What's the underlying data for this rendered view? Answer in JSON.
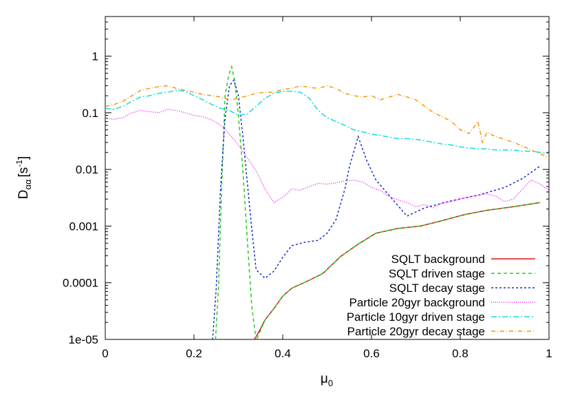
{
  "chart_data": {
    "type": "line",
    "xlabel": "μ",
    "xlabel_sub": "0",
    "ylabel": "D",
    "ylabel_sub": "αα",
    "ylabel_unit": "[s",
    "ylabel_unit_sup": "-1",
    "ylabel_unit_close": "]",
    "xlim": [
      0,
      1
    ],
    "ylim": [
      1e-05,
      5
    ],
    "yscale": "log",
    "x_ticks": [
      {
        "v": 0,
        "label": "0"
      },
      {
        "v": 0.2,
        "label": "0.2"
      },
      {
        "v": 0.4,
        "label": "0.4"
      },
      {
        "v": 0.6,
        "label": "0.6"
      },
      {
        "v": 0.8,
        "label": "0.8"
      },
      {
        "v": 1,
        "label": "1"
      }
    ],
    "y_ticks": [
      {
        "v": 1e-05,
        "label": "1e-05"
      },
      {
        "v": 0.0001,
        "label": "0.0001"
      },
      {
        "v": 0.001,
        "label": "0.001"
      },
      {
        "v": 0.01,
        "label": "0.01"
      },
      {
        "v": 0.1,
        "label": "0.1"
      },
      {
        "v": 1,
        "label": "1"
      }
    ],
    "legend_position": "bottom-right",
    "series": [
      {
        "name": "SQLT background",
        "color": "#dd1111",
        "dash": "",
        "points": [
          [
            0.33,
            8.5e-06
          ],
          [
            0.345,
            1.3e-05
          ],
          [
            0.36,
            2.2e-05
          ],
          [
            0.38,
            3.5e-05
          ],
          [
            0.4,
            5.8e-05
          ],
          [
            0.42,
            8e-05
          ],
          [
            0.45,
            0.000102
          ],
          [
            0.49,
            0.000145
          ],
          [
            0.53,
            0.00029
          ],
          [
            0.57,
            0.00048
          ],
          [
            0.61,
            0.00075
          ],
          [
            0.66,
            0.00091
          ],
          [
            0.71,
            0.001
          ],
          [
            0.76,
            0.00125
          ],
          [
            0.81,
            0.0016
          ],
          [
            0.86,
            0.0019
          ],
          [
            0.92,
            0.0022
          ],
          [
            0.98,
            0.0026
          ]
        ]
      },
      {
        "name": "SQLT driven stage",
        "color": "#22cc22",
        "dash": "5,4",
        "points": [
          [
            0.247,
            6e-06
          ],
          [
            0.255,
            8e-05
          ],
          [
            0.262,
            0.004
          ],
          [
            0.27,
            0.2
          ],
          [
            0.278,
            0.45
          ],
          [
            0.285,
            0.65
          ],
          [
            0.292,
            0.35
          ],
          [
            0.3,
            0.09
          ],
          [
            0.31,
            0.01
          ],
          [
            0.32,
            0.0006
          ],
          [
            0.33,
            4e-05
          ],
          [
            0.34,
            9.5e-06
          ],
          [
            0.36,
            2.2e-05
          ],
          [
            0.38,
            3.5e-05
          ],
          [
            0.4,
            5.8e-05
          ],
          [
            0.42,
            8e-05
          ],
          [
            0.45,
            0.000102
          ],
          [
            0.49,
            0.000145
          ],
          [
            0.53,
            0.00029
          ],
          [
            0.57,
            0.00048
          ],
          [
            0.61,
            0.00075
          ],
          [
            0.66,
            0.00091
          ],
          [
            0.71,
            0.001
          ],
          [
            0.76,
            0.00125
          ],
          [
            0.81,
            0.0016
          ],
          [
            0.86,
            0.0019
          ],
          [
            0.92,
            0.0022
          ],
          [
            0.98,
            0.0026
          ]
        ]
      },
      {
        "name": "SQLT decay stage",
        "color": "#1a2acc",
        "dash": "3,3",
        "points": [
          [
            0.24,
            6e-06
          ],
          [
            0.25,
            8e-05
          ],
          [
            0.26,
            0.005
          ],
          [
            0.27,
            0.08
          ],
          [
            0.28,
            0.3
          ],
          [
            0.29,
            0.38
          ],
          [
            0.3,
            0.2
          ],
          [
            0.31,
            0.04
          ],
          [
            0.32,
            0.006
          ],
          [
            0.33,
            0.0009
          ],
          [
            0.34,
            0.00017
          ],
          [
            0.36,
            0.00012
          ],
          [
            0.38,
            0.00016
          ],
          [
            0.4,
            0.00028
          ],
          [
            0.42,
            0.00045
          ],
          [
            0.45,
            0.00052
          ],
          [
            0.48,
            0.00056
          ],
          [
            0.5,
            0.00075
          ],
          [
            0.52,
            0.0013
          ],
          [
            0.54,
            0.0045
          ],
          [
            0.55,
            0.011
          ],
          [
            0.57,
            0.038
          ],
          [
            0.59,
            0.014
          ],
          [
            0.61,
            0.0065
          ],
          [
            0.65,
            0.0028
          ],
          [
            0.68,
            0.0015
          ],
          [
            0.72,
            0.0021
          ],
          [
            0.78,
            0.0028
          ],
          [
            0.84,
            0.0035
          ],
          [
            0.9,
            0.0048
          ],
          [
            0.94,
            0.0069
          ],
          [
            0.98,
            0.0115
          ]
        ]
      },
      {
        "name": "Particle 20gyr background",
        "color": "#ee22ee",
        "dash": "1,2",
        "points": [
          [
            0.0,
            0.08
          ],
          [
            0.02,
            0.077
          ],
          [
            0.04,
            0.082
          ],
          [
            0.06,
            0.1
          ],
          [
            0.08,
            0.11
          ],
          [
            0.1,
            0.105
          ],
          [
            0.12,
            0.1
          ],
          [
            0.14,
            0.115
          ],
          [
            0.16,
            0.11
          ],
          [
            0.18,
            0.1
          ],
          [
            0.2,
            0.09
          ],
          [
            0.22,
            0.085
          ],
          [
            0.24,
            0.075
          ],
          [
            0.26,
            0.06
          ],
          [
            0.28,
            0.042
          ],
          [
            0.3,
            0.027
          ],
          [
            0.32,
            0.016
          ],
          [
            0.34,
            0.0095
          ],
          [
            0.36,
            0.0045
          ],
          [
            0.38,
            0.0026
          ],
          [
            0.4,
            0.0032
          ],
          [
            0.42,
            0.0045
          ],
          [
            0.44,
            0.0043
          ],
          [
            0.46,
            0.005
          ],
          [
            0.48,
            0.0057
          ],
          [
            0.5,
            0.0055
          ],
          [
            0.52,
            0.0058
          ],
          [
            0.54,
            0.0063
          ],
          [
            0.56,
            0.0065
          ],
          [
            0.58,
            0.006
          ],
          [
            0.6,
            0.0048
          ],
          [
            0.62,
            0.0043
          ],
          [
            0.64,
            0.0033
          ],
          [
            0.66,
            0.0029
          ],
          [
            0.68,
            0.0026
          ],
          [
            0.7,
            0.0022
          ],
          [
            0.72,
            0.0024
          ],
          [
            0.74,
            0.0021
          ],
          [
            0.76,
            0.0026
          ],
          [
            0.78,
            0.0027
          ],
          [
            0.8,
            0.003
          ],
          [
            0.82,
            0.0033
          ],
          [
            0.84,
            0.0035
          ],
          [
            0.86,
            0.0037
          ],
          [
            0.88,
            0.0034
          ],
          [
            0.9,
            0.0027
          ],
          [
            0.92,
            0.003
          ],
          [
            0.94,
            0.0045
          ],
          [
            0.96,
            0.0065
          ],
          [
            0.98,
            0.0055
          ],
          [
            1.0,
            0.0043
          ]
        ]
      },
      {
        "name": "Particle 10gyr driven stage",
        "color": "#11dddd",
        "dash": "8,3,2,3",
        "points": [
          [
            0.0,
            0.12
          ],
          [
            0.02,
            0.115
          ],
          [
            0.04,
            0.13
          ],
          [
            0.06,
            0.16
          ],
          [
            0.08,
            0.19
          ],
          [
            0.1,
            0.2
          ],
          [
            0.12,
            0.22
          ],
          [
            0.14,
            0.23
          ],
          [
            0.16,
            0.25
          ],
          [
            0.18,
            0.24
          ],
          [
            0.2,
            0.2
          ],
          [
            0.22,
            0.17
          ],
          [
            0.24,
            0.14
          ],
          [
            0.26,
            0.12
          ],
          [
            0.28,
            0.11
          ],
          [
            0.3,
            0.09
          ],
          [
            0.32,
            0.095
          ],
          [
            0.34,
            0.13
          ],
          [
            0.36,
            0.18
          ],
          [
            0.38,
            0.22
          ],
          [
            0.4,
            0.24
          ],
          [
            0.42,
            0.24
          ],
          [
            0.44,
            0.23
          ],
          [
            0.46,
            0.18
          ],
          [
            0.48,
            0.11
          ],
          [
            0.5,
            0.082
          ],
          [
            0.52,
            0.07
          ],
          [
            0.54,
            0.06
          ],
          [
            0.56,
            0.05
          ],
          [
            0.58,
            0.046
          ],
          [
            0.6,
            0.042
          ],
          [
            0.62,
            0.04
          ],
          [
            0.64,
            0.037
          ],
          [
            0.66,
            0.035
          ],
          [
            0.68,
            0.035
          ],
          [
            0.7,
            0.034
          ],
          [
            0.72,
            0.032
          ],
          [
            0.74,
            0.03
          ],
          [
            0.76,
            0.028
          ],
          [
            0.78,
            0.027
          ],
          [
            0.8,
            0.025
          ],
          [
            0.82,
            0.024
          ],
          [
            0.84,
            0.023
          ],
          [
            0.86,
            0.023
          ],
          [
            0.88,
            0.022
          ],
          [
            0.9,
            0.022
          ],
          [
            0.92,
            0.022
          ],
          [
            0.94,
            0.021
          ],
          [
            0.96,
            0.021
          ],
          [
            0.98,
            0.02
          ],
          [
            1.0,
            0.019
          ]
        ]
      },
      {
        "name": "Particle 20gyr decay stage",
        "color": "#ee9911",
        "dash": "6,3,1,3",
        "points": [
          [
            0.0,
            0.13
          ],
          [
            0.02,
            0.14
          ],
          [
            0.04,
            0.16
          ],
          [
            0.06,
            0.2
          ],
          [
            0.08,
            0.25
          ],
          [
            0.1,
            0.27
          ],
          [
            0.12,
            0.29
          ],
          [
            0.14,
            0.3
          ],
          [
            0.16,
            0.27
          ],
          [
            0.18,
            0.25
          ],
          [
            0.2,
            0.23
          ],
          [
            0.22,
            0.21
          ],
          [
            0.24,
            0.2
          ],
          [
            0.26,
            0.19
          ],
          [
            0.28,
            0.17
          ],
          [
            0.3,
            0.18
          ],
          [
            0.32,
            0.2
          ],
          [
            0.34,
            0.22
          ],
          [
            0.36,
            0.23
          ],
          [
            0.38,
            0.23
          ],
          [
            0.4,
            0.26
          ],
          [
            0.42,
            0.27
          ],
          [
            0.44,
            0.3
          ],
          [
            0.46,
            0.28
          ],
          [
            0.48,
            0.27
          ],
          [
            0.5,
            0.3
          ],
          [
            0.52,
            0.27
          ],
          [
            0.54,
            0.22
          ],
          [
            0.56,
            0.2
          ],
          [
            0.58,
            0.19
          ],
          [
            0.6,
            0.2
          ],
          [
            0.62,
            0.17
          ],
          [
            0.64,
            0.19
          ],
          [
            0.66,
            0.21
          ],
          [
            0.68,
            0.19
          ],
          [
            0.7,
            0.17
          ],
          [
            0.72,
            0.13
          ],
          [
            0.74,
            0.1
          ],
          [
            0.76,
            0.085
          ],
          [
            0.78,
            0.07
          ],
          [
            0.8,
            0.05
          ],
          [
            0.82,
            0.043
          ],
          [
            0.84,
            0.07
          ],
          [
            0.85,
            0.03
          ],
          [
            0.86,
            0.045
          ],
          [
            0.88,
            0.038
          ],
          [
            0.9,
            0.034
          ],
          [
            0.92,
            0.03
          ],
          [
            0.94,
            0.026
          ],
          [
            0.96,
            0.022
          ],
          [
            0.98,
            0.019
          ],
          [
            1.0,
            0.016
          ]
        ]
      }
    ]
  }
}
